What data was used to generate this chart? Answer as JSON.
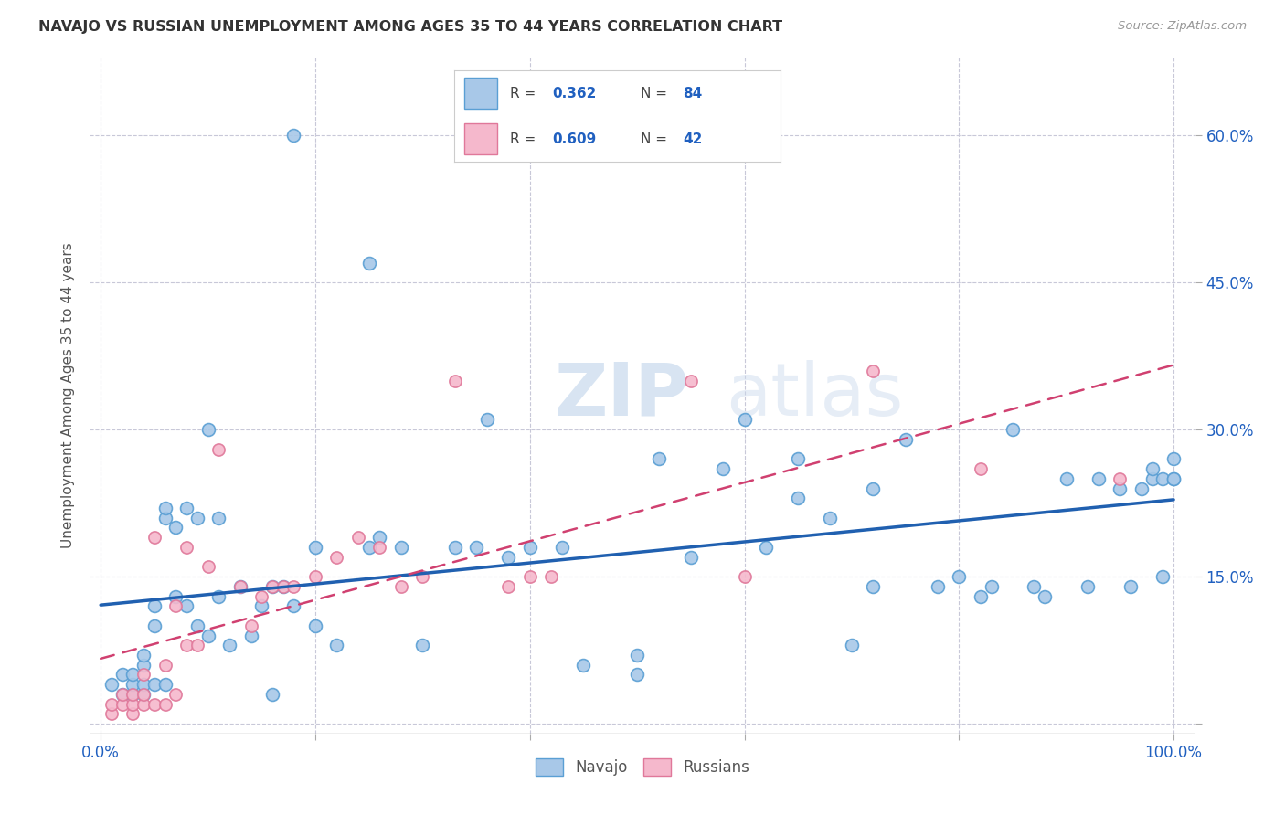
{
  "title": "NAVAJO VS RUSSIAN UNEMPLOYMENT AMONG AGES 35 TO 44 YEARS CORRELATION CHART",
  "source": "Source: ZipAtlas.com",
  "ylabel": "Unemployment Among Ages 35 to 44 years",
  "xlim": [
    -0.01,
    1.02
  ],
  "ylim": [
    -0.01,
    0.68
  ],
  "xticks": [
    0.0,
    0.2,
    0.4,
    0.6,
    0.8,
    1.0
  ],
  "xticklabels_show": [
    "0.0%",
    "100.0%"
  ],
  "yticks": [
    0.0,
    0.15,
    0.3,
    0.45,
    0.6
  ],
  "yticklabels": [
    "15.0%",
    "30.0%",
    "45.0%",
    "60.0%"
  ],
  "navajo_R": 0.362,
  "navajo_N": 84,
  "russian_R": 0.609,
  "russian_N": 42,
  "navajo_color": "#a8c8e8",
  "russian_color": "#f5b8cc",
  "navajo_edge_color": "#5a9fd4",
  "russian_edge_color": "#e0789a",
  "navajo_line_color": "#2060b0",
  "russian_line_color": "#d04070",
  "background_color": "#ffffff",
  "grid_color": "#c8c8d8",
  "tick_label_color": "#2060c0",
  "navajo_x": [
    0.01,
    0.02,
    0.02,
    0.03,
    0.03,
    0.03,
    0.04,
    0.04,
    0.04,
    0.04,
    0.05,
    0.05,
    0.05,
    0.06,
    0.06,
    0.06,
    0.07,
    0.07,
    0.08,
    0.08,
    0.09,
    0.09,
    0.1,
    0.1,
    0.11,
    0.11,
    0.12,
    0.13,
    0.14,
    0.15,
    0.16,
    0.16,
    0.17,
    0.18,
    0.18,
    0.2,
    0.2,
    0.22,
    0.25,
    0.25,
    0.26,
    0.28,
    0.3,
    0.33,
    0.35,
    0.36,
    0.38,
    0.4,
    0.43,
    0.45,
    0.5,
    0.5,
    0.52,
    0.55,
    0.58,
    0.6,
    0.62,
    0.65,
    0.65,
    0.68,
    0.7,
    0.72,
    0.72,
    0.75,
    0.78,
    0.8,
    0.82,
    0.83,
    0.85,
    0.87,
    0.88,
    0.9,
    0.92,
    0.93,
    0.95,
    0.96,
    0.97,
    0.98,
    0.98,
    0.99,
    0.99,
    1.0,
    1.0,
    1.0
  ],
  "navajo_y": [
    0.04,
    0.03,
    0.05,
    0.03,
    0.04,
    0.05,
    0.03,
    0.04,
    0.06,
    0.07,
    0.04,
    0.1,
    0.12,
    0.04,
    0.21,
    0.22,
    0.13,
    0.2,
    0.12,
    0.22,
    0.1,
    0.21,
    0.09,
    0.3,
    0.13,
    0.21,
    0.08,
    0.14,
    0.09,
    0.12,
    0.03,
    0.14,
    0.14,
    0.12,
    0.6,
    0.1,
    0.18,
    0.08,
    0.47,
    0.18,
    0.19,
    0.18,
    0.08,
    0.18,
    0.18,
    0.31,
    0.17,
    0.18,
    0.18,
    0.06,
    0.05,
    0.07,
    0.27,
    0.17,
    0.26,
    0.31,
    0.18,
    0.23,
    0.27,
    0.21,
    0.08,
    0.14,
    0.24,
    0.29,
    0.14,
    0.15,
    0.13,
    0.14,
    0.3,
    0.14,
    0.13,
    0.25,
    0.14,
    0.25,
    0.24,
    0.14,
    0.24,
    0.25,
    0.26,
    0.15,
    0.25,
    0.25,
    0.27,
    0.25
  ],
  "russian_x": [
    0.01,
    0.01,
    0.02,
    0.02,
    0.03,
    0.03,
    0.03,
    0.04,
    0.04,
    0.04,
    0.05,
    0.05,
    0.06,
    0.06,
    0.07,
    0.07,
    0.08,
    0.08,
    0.09,
    0.1,
    0.11,
    0.13,
    0.14,
    0.15,
    0.16,
    0.17,
    0.18,
    0.2,
    0.22,
    0.24,
    0.26,
    0.28,
    0.3,
    0.33,
    0.38,
    0.4,
    0.42,
    0.55,
    0.6,
    0.72,
    0.82,
    0.95
  ],
  "russian_y": [
    0.01,
    0.02,
    0.02,
    0.03,
    0.01,
    0.02,
    0.03,
    0.02,
    0.03,
    0.05,
    0.02,
    0.19,
    0.02,
    0.06,
    0.03,
    0.12,
    0.08,
    0.18,
    0.08,
    0.16,
    0.28,
    0.14,
    0.1,
    0.13,
    0.14,
    0.14,
    0.14,
    0.15,
    0.17,
    0.19,
    0.18,
    0.14,
    0.15,
    0.35,
    0.14,
    0.15,
    0.15,
    0.35,
    0.15,
    0.36,
    0.26,
    0.25
  ]
}
